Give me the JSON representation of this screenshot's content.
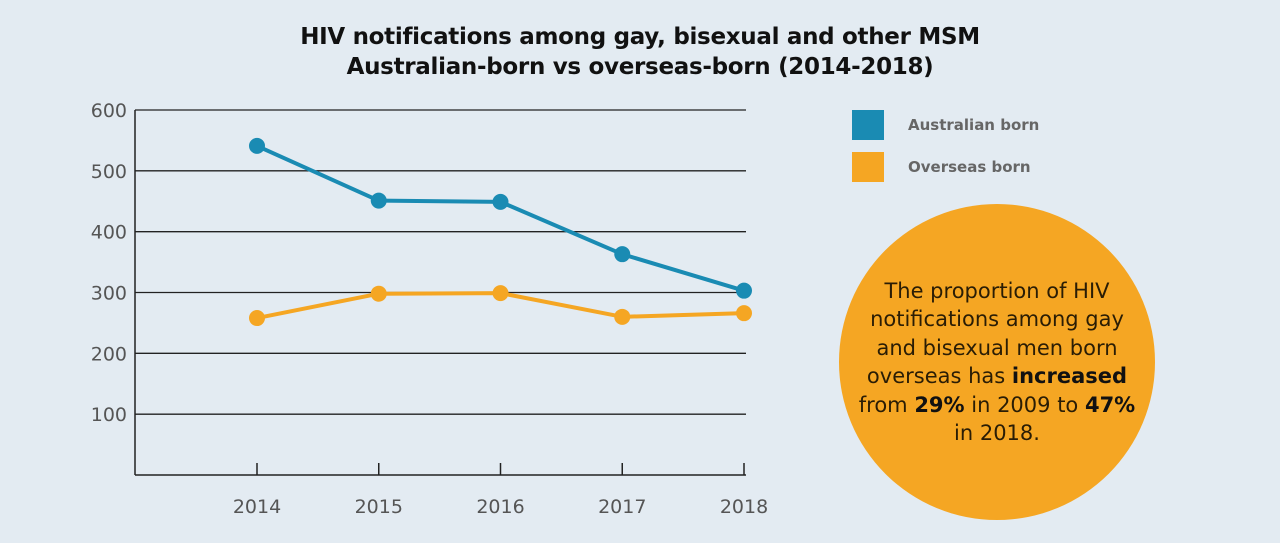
{
  "chart_data": {
    "type": "line",
    "title": "HIV notifications among gay, bisexual and other MSM",
    "subtitle": "Australian-born vs overseas-born (2014-2018)",
    "x": [
      "2014",
      "2015",
      "2016",
      "2017",
      "2018"
    ],
    "yticks": [
      100,
      200,
      300,
      400,
      500,
      600
    ],
    "ylim": [
      0,
      600
    ],
    "grid": true,
    "legend_placement": "right",
    "series": [
      {
        "name": "Australian born",
        "color": "#1a8bb3",
        "values": [
          541,
          451,
          449,
          363,
          303
        ]
      },
      {
        "name": "Overseas born",
        "color": "#f5a623",
        "values": [
          258,
          298,
          299,
          260,
          266
        ]
      }
    ]
  },
  "callout": {
    "parts": [
      {
        "text": "The proportion of HIV notifications among gay and bisexual men born overseas has ",
        "bold": false
      },
      {
        "text": "increased",
        "bold": true
      },
      {
        "text": " from ",
        "bold": false
      },
      {
        "text": "29%",
        "bold": true
      },
      {
        "text": " in 2009 to ",
        "bold": false
      },
      {
        "text": "47%",
        "bold": true
      },
      {
        "text": " in 2018.",
        "bold": false
      }
    ],
    "color": "#f5a623"
  }
}
